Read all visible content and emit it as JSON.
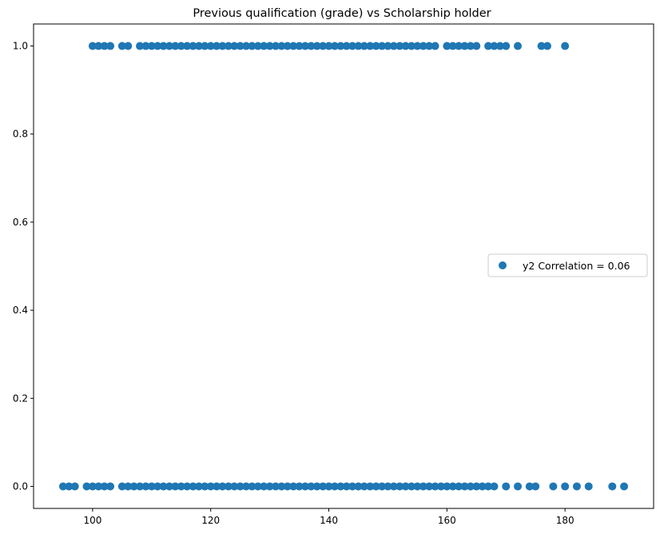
{
  "chart_data": {
    "type": "scatter",
    "title": "Previous qualification (grade) vs Scholarship holder",
    "xlabel": "",
    "ylabel": "",
    "xlim": [
      90,
      195
    ],
    "ylim": [
      -0.05,
      1.05
    ],
    "xticks": [
      100,
      120,
      140,
      160,
      180
    ],
    "yticks": [
      0.0,
      0.2,
      0.4,
      0.6,
      0.8,
      1.0
    ],
    "xtick_labels": [
      "100",
      "120",
      "140",
      "160",
      "180"
    ],
    "ytick_labels": [
      "0.0",
      "0.2",
      "0.4",
      "0.6",
      "0.8",
      "1.0"
    ],
    "grid": false,
    "legend": {
      "position": "center-right",
      "entries": [
        "y2 Correlation = 0.06"
      ]
    },
    "series": [
      {
        "name": "y2 Correlation = 0.06",
        "color": "#1f77b4",
        "points": [
          [
            100,
            1
          ],
          [
            101,
            1
          ],
          [
            102,
            1
          ],
          [
            103,
            1
          ],
          [
            105,
            1
          ],
          [
            106,
            1
          ],
          [
            108,
            1
          ],
          [
            109,
            1
          ],
          [
            110,
            1
          ],
          [
            111,
            1
          ],
          [
            112,
            1
          ],
          [
            113,
            1
          ],
          [
            114,
            1
          ],
          [
            115,
            1
          ],
          [
            116,
            1
          ],
          [
            117,
            1
          ],
          [
            118,
            1
          ],
          [
            119,
            1
          ],
          [
            120,
            1
          ],
          [
            121,
            1
          ],
          [
            122,
            1
          ],
          [
            123,
            1
          ],
          [
            124,
            1
          ],
          [
            125,
            1
          ],
          [
            126,
            1
          ],
          [
            127,
            1
          ],
          [
            128,
            1
          ],
          [
            129,
            1
          ],
          [
            130,
            1
          ],
          [
            131,
            1
          ],
          [
            132,
            1
          ],
          [
            133,
            1
          ],
          [
            134,
            1
          ],
          [
            135,
            1
          ],
          [
            136,
            1
          ],
          [
            137,
            1
          ],
          [
            138,
            1
          ],
          [
            139,
            1
          ],
          [
            140,
            1
          ],
          [
            141,
            1
          ],
          [
            142,
            1
          ],
          [
            143,
            1
          ],
          [
            144,
            1
          ],
          [
            145,
            1
          ],
          [
            146,
            1
          ],
          [
            147,
            1
          ],
          [
            148,
            1
          ],
          [
            149,
            1
          ],
          [
            150,
            1
          ],
          [
            151,
            1
          ],
          [
            152,
            1
          ],
          [
            153,
            1
          ],
          [
            154,
            1
          ],
          [
            155,
            1
          ],
          [
            156,
            1
          ],
          [
            157,
            1
          ],
          [
            158,
            1
          ],
          [
            160,
            1
          ],
          [
            161,
            1
          ],
          [
            162,
            1
          ],
          [
            163,
            1
          ],
          [
            164,
            1
          ],
          [
            165,
            1
          ],
          [
            167,
            1
          ],
          [
            168,
            1
          ],
          [
            169,
            1
          ],
          [
            170,
            1
          ],
          [
            172,
            1
          ],
          [
            176,
            1
          ],
          [
            177,
            1
          ],
          [
            180,
            1
          ],
          [
            95,
            0
          ],
          [
            96,
            0
          ],
          [
            97,
            0
          ],
          [
            99,
            0
          ],
          [
            100,
            0
          ],
          [
            101,
            0
          ],
          [
            102,
            0
          ],
          [
            103,
            0
          ],
          [
            105,
            0
          ],
          [
            106,
            0
          ],
          [
            107,
            0
          ],
          [
            108,
            0
          ],
          [
            109,
            0
          ],
          [
            110,
            0
          ],
          [
            111,
            0
          ],
          [
            112,
            0
          ],
          [
            113,
            0
          ],
          [
            114,
            0
          ],
          [
            115,
            0
          ],
          [
            116,
            0
          ],
          [
            117,
            0
          ],
          [
            118,
            0
          ],
          [
            119,
            0
          ],
          [
            120,
            0
          ],
          [
            121,
            0
          ],
          [
            122,
            0
          ],
          [
            123,
            0
          ],
          [
            124,
            0
          ],
          [
            125,
            0
          ],
          [
            126,
            0
          ],
          [
            127,
            0
          ],
          [
            128,
            0
          ],
          [
            129,
            0
          ],
          [
            130,
            0
          ],
          [
            131,
            0
          ],
          [
            132,
            0
          ],
          [
            133,
            0
          ],
          [
            134,
            0
          ],
          [
            135,
            0
          ],
          [
            136,
            0
          ],
          [
            137,
            0
          ],
          [
            138,
            0
          ],
          [
            139,
            0
          ],
          [
            140,
            0
          ],
          [
            141,
            0
          ],
          [
            142,
            0
          ],
          [
            143,
            0
          ],
          [
            144,
            0
          ],
          [
            145,
            0
          ],
          [
            146,
            0
          ],
          [
            147,
            0
          ],
          [
            148,
            0
          ],
          [
            149,
            0
          ],
          [
            150,
            0
          ],
          [
            151,
            0
          ],
          [
            152,
            0
          ],
          [
            153,
            0
          ],
          [
            154,
            0
          ],
          [
            155,
            0
          ],
          [
            156,
            0
          ],
          [
            157,
            0
          ],
          [
            158,
            0
          ],
          [
            159,
            0
          ],
          [
            160,
            0
          ],
          [
            161,
            0
          ],
          [
            162,
            0
          ],
          [
            163,
            0
          ],
          [
            164,
            0
          ],
          [
            165,
            0
          ],
          [
            166,
            0
          ],
          [
            167,
            0
          ],
          [
            168,
            0
          ],
          [
            170,
            0
          ],
          [
            172,
            0
          ],
          [
            174,
            0
          ],
          [
            175,
            0
          ],
          [
            178,
            0
          ],
          [
            180,
            0
          ],
          [
            182,
            0
          ],
          [
            184,
            0
          ],
          [
            188,
            0
          ],
          [
            190,
            0
          ]
        ]
      }
    ]
  }
}
